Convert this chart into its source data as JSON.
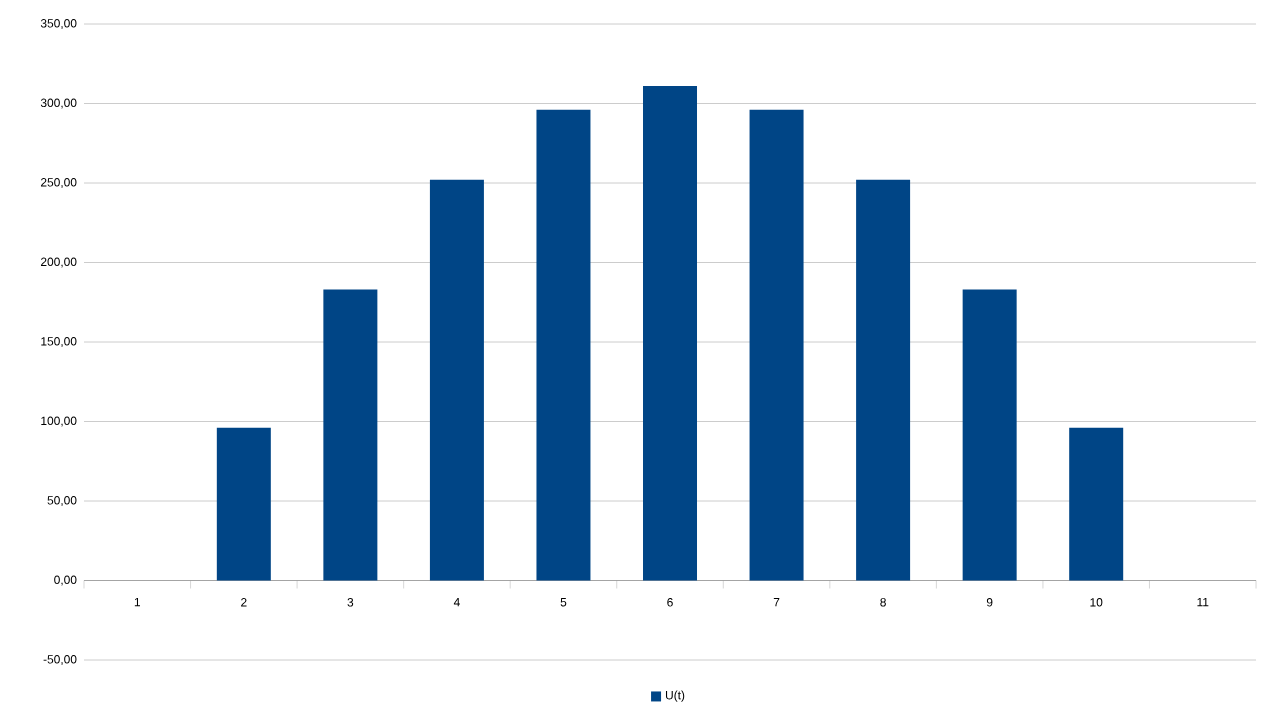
{
  "chart_data": {
    "type": "bar",
    "categories": [
      "1",
      "2",
      "3",
      "4",
      "5",
      "6",
      "7",
      "8",
      "9",
      "10",
      "11"
    ],
    "series": [
      {
        "name": "U(t)",
        "color": "#004586",
        "values": [
          0,
          96,
          183,
          252,
          296,
          311,
          296,
          252,
          183,
          96,
          0
        ]
      }
    ],
    "ylim": [
      -50,
      350
    ],
    "yticks": [
      {
        "value": -50,
        "label": "-50,00"
      },
      {
        "value": 0,
        "label": "0,00"
      },
      {
        "value": 50,
        "label": "50,00"
      },
      {
        "value": 100,
        "label": "100,00"
      },
      {
        "value": 150,
        "label": "150,00"
      },
      {
        "value": 200,
        "label": "200,00"
      },
      {
        "value": 250,
        "label": "250,00"
      },
      {
        "value": 300,
        "label": "300,00"
      },
      {
        "value": 350,
        "label": "350,00"
      }
    ],
    "grid": "y",
    "legend": "bottom"
  }
}
